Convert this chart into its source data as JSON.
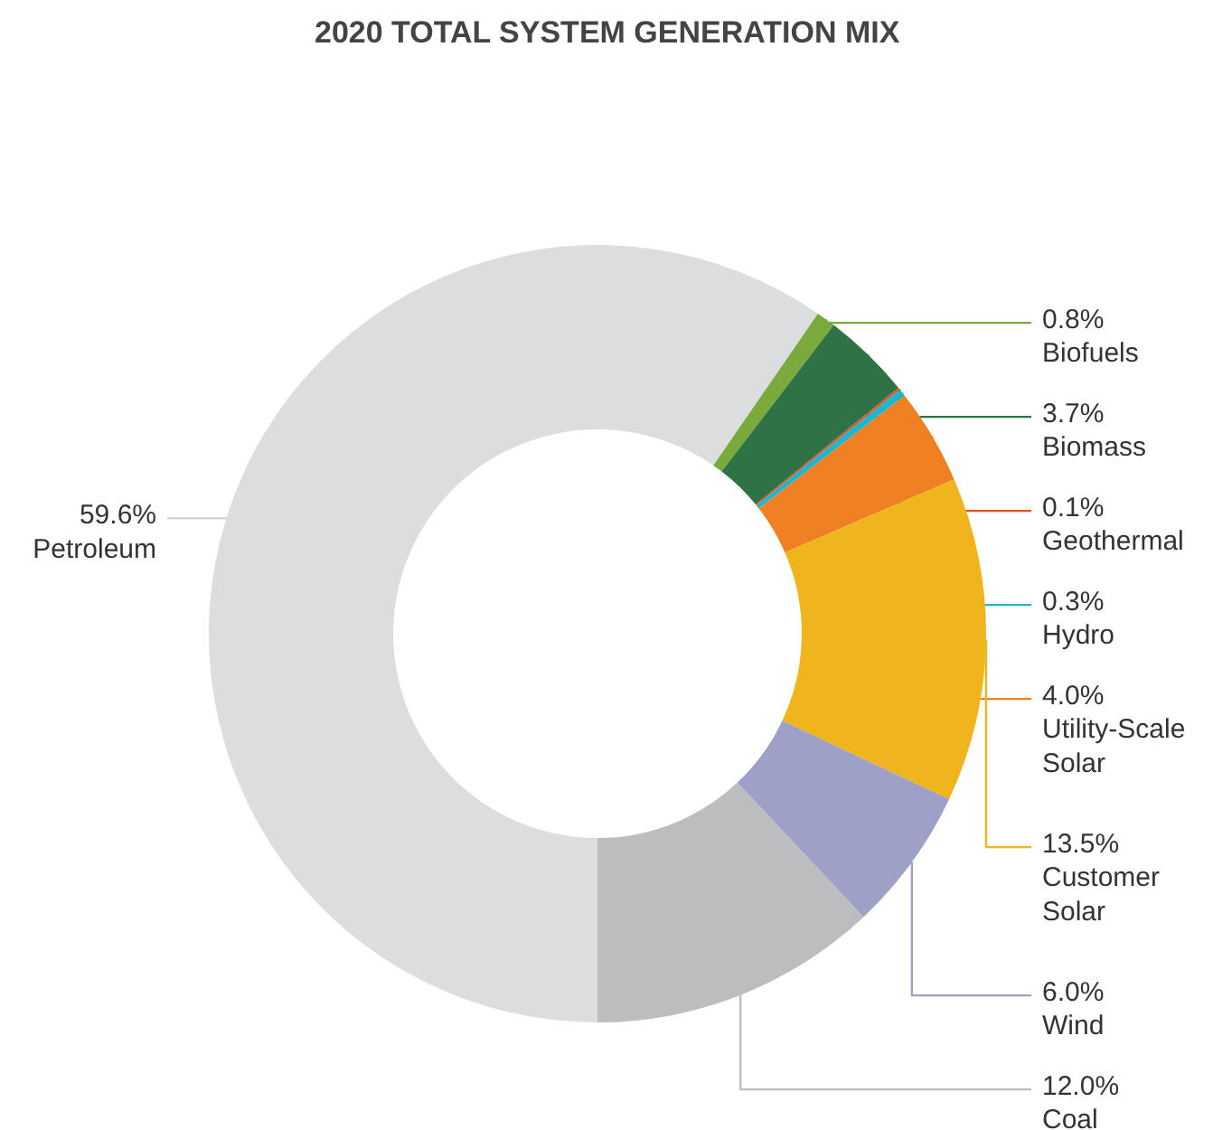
{
  "chart_data": {
    "type": "donut",
    "title": "2020 TOTAL SYSTEM GENERATION MIX",
    "categories": [
      "Petroleum",
      "Biofuels",
      "Biomass",
      "Geothermal",
      "Hydro",
      "Utility-Scale Solar",
      "Customer Solar",
      "Wind",
      "Coal"
    ],
    "values": [
      59.6,
      0.8,
      3.7,
      0.1,
      0.3,
      4.0,
      13.5,
      6.0,
      12.0
    ],
    "value_labels": [
      "59.6%",
      "0.8%",
      "3.7%",
      "0.1%",
      "0.3%",
      "4.0%",
      "13.5%",
      "6.0%",
      "12.0%"
    ],
    "colors": [
      "#dcdddf",
      "#7aa93c",
      "#2e7245",
      "#e5541f",
      "#1fb5cf",
      "#f08024",
      "#f0b41d",
      "#9fa0c8",
      "#bcbdbf"
    ]
  }
}
